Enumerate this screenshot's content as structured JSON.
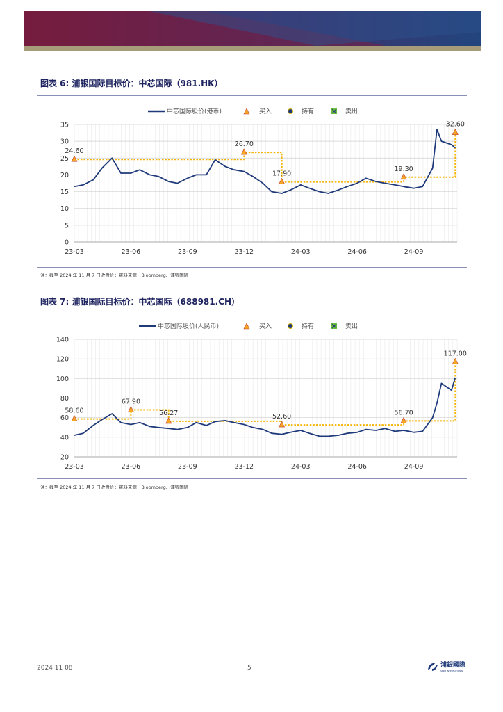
{
  "page": {
    "footer_date": "2024 11 08",
    "page_number": "5",
    "logo_text": "浦銀國際",
    "logo_subtext": "SPDB INTERNATIONAL"
  },
  "colors": {
    "price_line": "#1f3a7a",
    "target_line": "#f5b400",
    "buy_marker": "#f5a623",
    "buy_marker_edge": "#c0392b",
    "hold_marker": "#1f3a7a",
    "sell_marker": "#6bbf3a",
    "title": "#1f2460"
  },
  "figures": [
    {
      "title_prefix": "图表 6:",
      "title_text": "浦银国际目标价：中芯国际（981.HK）",
      "note": "注：截至 2024 年 11 月 7 日收盘价；资料来源：Bloomberg、浦银国际"
    },
    {
      "title_prefix": "图表 7:",
      "title_text": "浦银国际目标价：中芯国际（688981.CH）",
      "note": "注：截至 2024 年 11 月 7 日收盘价；资料来源：Bloomberg、浦银国际"
    }
  ],
  "chart_data": [
    {
      "type": "line",
      "legend": [
        "中芯国际股价(港币)",
        "买入",
        "持有",
        "卖出"
      ],
      "legend_position": "top",
      "x_ticks": [
        "23-03",
        "23-06",
        "23-09",
        "23-12",
        "24-03",
        "24-06",
        "24-09"
      ],
      "ylim": [
        0,
        35
      ],
      "y_ticks": [
        0,
        5,
        10,
        15,
        20,
        25,
        30,
        35
      ],
      "grid": true,
      "series": [
        {
          "name": "中芯国际股价(港币)",
          "x": [
            "23-03-01",
            "23-03-15",
            "23-04-01",
            "23-04-15",
            "23-05-01",
            "23-05-15",
            "23-06-01",
            "23-06-15",
            "23-07-01",
            "23-07-15",
            "23-08-01",
            "23-08-15",
            "23-09-01",
            "23-09-15",
            "23-10-01",
            "23-10-15",
            "23-11-01",
            "23-11-15",
            "23-12-01",
            "23-12-15",
            "24-01-01",
            "24-01-15",
            "24-02-01",
            "24-02-15",
            "24-03-01",
            "24-03-15",
            "24-04-01",
            "24-04-15",
            "24-05-01",
            "24-05-15",
            "24-06-01",
            "24-06-15",
            "24-07-01",
            "24-07-15",
            "24-08-01",
            "24-08-15",
            "24-09-01",
            "24-09-15",
            "24-10-01",
            "24-10-08",
            "24-10-15",
            "24-11-01",
            "24-11-07"
          ],
          "y": [
            16.5,
            17.0,
            18.5,
            22.0,
            25.0,
            20.5,
            20.5,
            21.5,
            20.0,
            19.5,
            18.0,
            17.5,
            19.0,
            20.0,
            20.0,
            24.5,
            22.5,
            21.5,
            21.0,
            19.5,
            17.5,
            15.0,
            14.5,
            15.5,
            17.0,
            16.0,
            15.0,
            14.5,
            15.5,
            16.5,
            17.5,
            19.0,
            18.0,
            17.5,
            17.0,
            16.5,
            16.0,
            16.5,
            22.0,
            33.5,
            30.0,
            29.0,
            28.0
          ]
        }
      ],
      "targets": [
        {
          "date": "23-03-01",
          "price": 24.6,
          "label": "24.60",
          "rating": "买入"
        },
        {
          "date": "23-12-01",
          "price": 26.7,
          "label": "26.70",
          "rating": "买入"
        },
        {
          "date": "24-02-01",
          "price": 17.9,
          "label": "17.90",
          "rating": "买入"
        },
        {
          "date": "24-08-15",
          "price": 19.3,
          "label": "19.30",
          "rating": "买入"
        },
        {
          "date": "24-11-07",
          "price": 32.6,
          "label": "32.60",
          "rating": "买入"
        }
      ]
    },
    {
      "type": "line",
      "legend": [
        "中芯国际股价(人民币)",
        "买入",
        "持有",
        "卖出"
      ],
      "legend_position": "top",
      "x_ticks": [
        "23-03",
        "23-06",
        "23-09",
        "23-12",
        "24-03",
        "24-06",
        "24-09"
      ],
      "ylim": [
        20,
        140
      ],
      "y_ticks": [
        20,
        40,
        60,
        80,
        100,
        120,
        140
      ],
      "grid": true,
      "series": [
        {
          "name": "中芯国际股价(人民币)",
          "x": [
            "23-03-01",
            "23-03-15",
            "23-04-01",
            "23-04-15",
            "23-05-01",
            "23-05-15",
            "23-06-01",
            "23-06-15",
            "23-07-01",
            "23-07-15",
            "23-08-01",
            "23-08-15",
            "23-09-01",
            "23-09-15",
            "23-10-01",
            "23-10-15",
            "23-11-01",
            "23-11-15",
            "23-12-01",
            "23-12-15",
            "24-01-01",
            "24-01-15",
            "24-02-01",
            "24-02-15",
            "24-03-01",
            "24-03-15",
            "24-04-01",
            "24-04-15",
            "24-05-01",
            "24-05-15",
            "24-06-01",
            "24-06-15",
            "24-07-01",
            "24-07-15",
            "24-08-01",
            "24-08-15",
            "24-09-01",
            "24-09-15",
            "24-10-01",
            "24-10-08",
            "24-10-15",
            "24-11-01",
            "24-11-07"
          ],
          "y": [
            42,
            44,
            52,
            58,
            64,
            55,
            53,
            55,
            51,
            50,
            49,
            48,
            50,
            55,
            52,
            56,
            57,
            55,
            53,
            50,
            48,
            44,
            43,
            45,
            47,
            44,
            41,
            41,
            42,
            44,
            45,
            48,
            47,
            49,
            46,
            47,
            45,
            46,
            60,
            75,
            95,
            88,
            101
          ]
        }
      ],
      "targets": [
        {
          "date": "23-03-01",
          "price": 58.6,
          "label": "58.60",
          "rating": "买入"
        },
        {
          "date": "23-06-01",
          "price": 67.9,
          "label": "67.90",
          "rating": "买入"
        },
        {
          "date": "23-08-01",
          "price": 56.27,
          "label": "56.27",
          "rating": "买入"
        },
        {
          "date": "24-02-01",
          "price": 52.6,
          "label": "52.60",
          "rating": "买入"
        },
        {
          "date": "24-08-15",
          "price": 56.7,
          "label": "56.70",
          "rating": "买入"
        },
        {
          "date": "24-11-07",
          "price": 117.0,
          "label": "117.00",
          "rating": "买入"
        }
      ]
    }
  ]
}
